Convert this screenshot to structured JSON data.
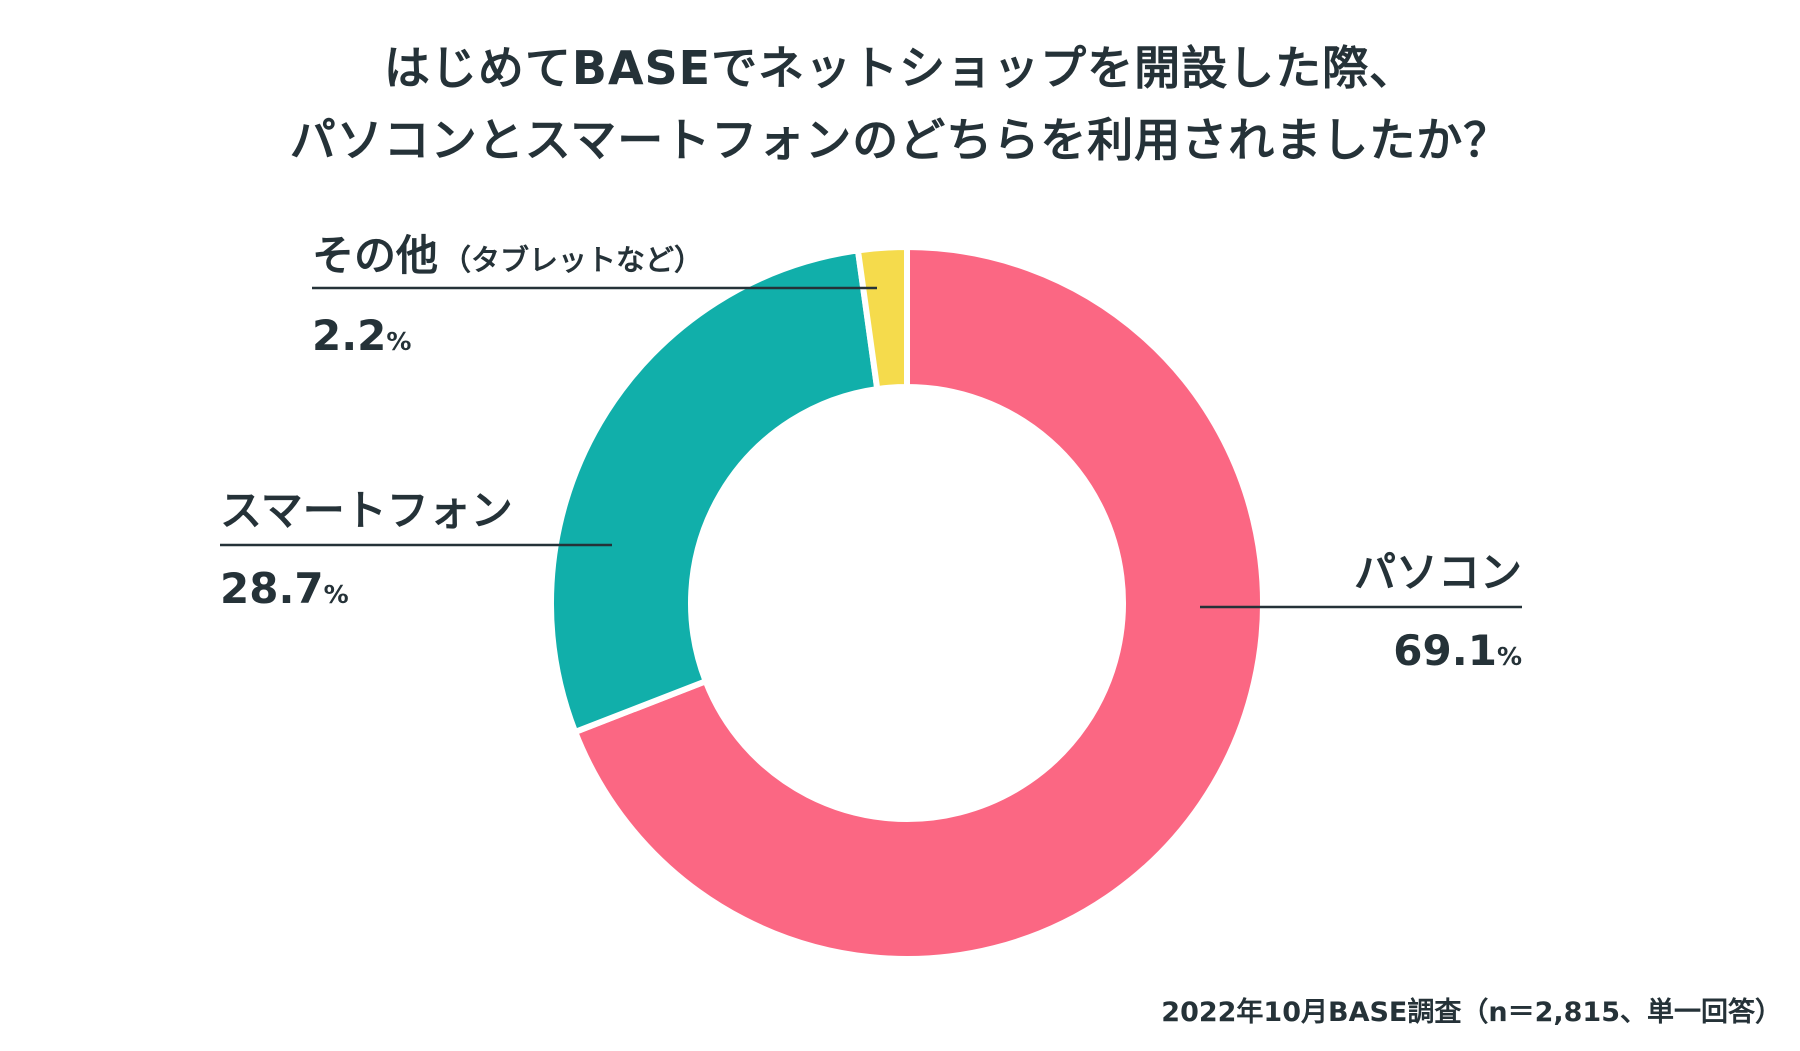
{
  "chart_data": {
    "type": "pie",
    "donut": true,
    "title_lines": [
      "はじめてBASEでネットショップを開設した際、",
      "パソコンとスマートフォンのどちらを利用されましたか？"
    ],
    "categories": [
      "パソコン",
      "スマートフォン",
      "その他"
    ],
    "category_notes": [
      "",
      "",
      "（タブレットなど）"
    ],
    "values": [
      69.1,
      28.7,
      2.2
    ],
    "value_labels": [
      "69.1",
      "28.7",
      "2.2"
    ],
    "unit": "%",
    "colors": [
      "#fb6783",
      "#11afaa",
      "#f5db4c"
    ],
    "start_direction": "top",
    "sweep": "clockwise",
    "source": "2022年10月BASE調査（n＝2,815、単一回答）"
  }
}
